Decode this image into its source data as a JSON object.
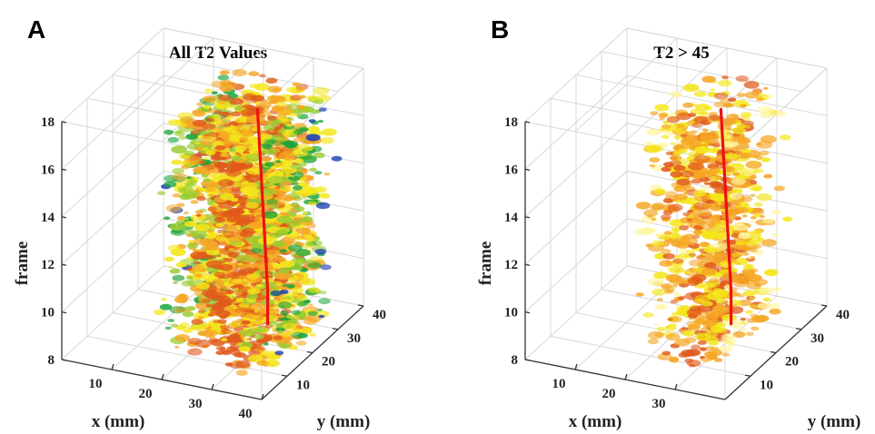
{
  "chart_data": [
    {
      "panel": "A",
      "title": "All T2 Values",
      "type": "scatter",
      "xlabel": "x (mm)",
      "ylabel": "y (mm)",
      "zlabel": "frame",
      "x_ticks": [
        10,
        20,
        30,
        40
      ],
      "y_ticks": [
        10,
        20,
        30,
        40
      ],
      "z_ticks": [
        8,
        10,
        12,
        14,
        16,
        18
      ],
      "xlim": [
        0,
        40
      ],
      "ylim": [
        0,
        40
      ],
      "zlim": [
        8,
        18
      ],
      "grid": true,
      "colors": [
        "#1a3fb5",
        "#1aa33a",
        "#9acd32",
        "#f4e61a",
        "#f5a623",
        "#e05a1a"
      ],
      "centerline": {
        "color": "#ee1111",
        "points": [
          {
            "x": 30,
            "y": 22,
            "frame": 8.6
          },
          {
            "x": 30,
            "y": 22,
            "frame": 10.0
          },
          {
            "x": 30,
            "y": 21,
            "frame": 12.0
          },
          {
            "x": 30,
            "y": 20,
            "frame": 14.0
          },
          {
            "x": 30,
            "y": 19,
            "frame": 16.0
          },
          {
            "x": 30,
            "y": 18,
            "frame": 18.0
          }
        ]
      }
    },
    {
      "panel": "B",
      "title": "T2 > 45",
      "type": "scatter",
      "xlabel": "x (mm)",
      "ylabel": "y (mm)",
      "zlabel": "frame",
      "x_ticks": [
        10,
        20,
        30
      ],
      "y_ticks": [
        10,
        20,
        30,
        40
      ],
      "z_ticks": [
        8,
        10,
        12,
        14,
        16,
        18
      ],
      "xlim": [
        0,
        40
      ],
      "ylim": [
        0,
        40
      ],
      "zlim": [
        8,
        18
      ],
      "grid": true,
      "colors": [
        "#fff5a0",
        "#f4e61a",
        "#f5a623",
        "#e05a1a"
      ],
      "centerline": {
        "color": "#ee1111",
        "points": [
          {
            "x": 30,
            "y": 22,
            "frame": 8.6
          },
          {
            "x": 30,
            "y": 22,
            "frame": 10.0
          },
          {
            "x": 30,
            "y": 21,
            "frame": 12.0
          },
          {
            "x": 30,
            "y": 20,
            "frame": 14.0
          },
          {
            "x": 30,
            "y": 19,
            "frame": 16.0
          },
          {
            "x": 30,
            "y": 18,
            "frame": 18.0
          }
        ]
      }
    }
  ]
}
